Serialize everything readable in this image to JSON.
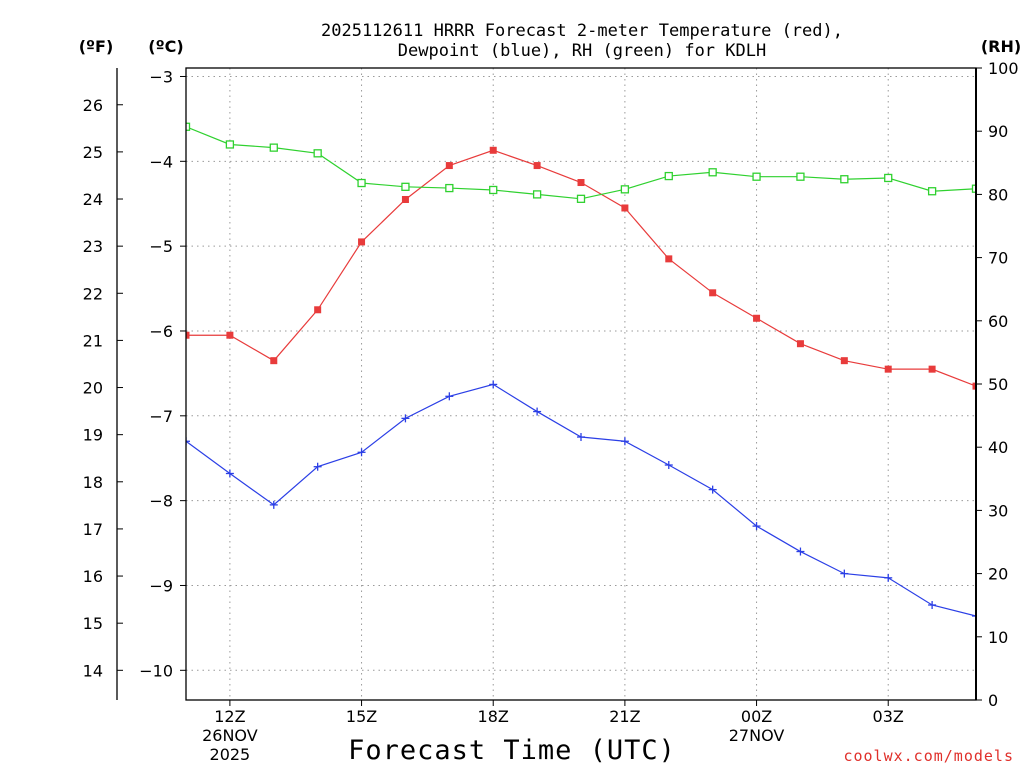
{
  "title_line1": "2025112611 HRRR Forecast 2-meter Temperature (red),",
  "title_line2": "Dewpoint (blue), RH (green) for KDLH",
  "units": {
    "fahrenheit": "(ºF)",
    "celsius": "(ºC)",
    "rh": "(RH)"
  },
  "xlabel": "Forecast Time (UTC)",
  "credit": "coolwx.com/models",
  "colors": {
    "temperature": "#e83b3b",
    "dewpoint": "#2b3fe6",
    "rh": "#2fd12f",
    "grid": "#9a9a9a"
  },
  "chart_data": {
    "type": "line",
    "x": [
      11,
      12,
      13,
      14,
      15,
      16,
      17,
      18,
      19,
      20,
      21,
      22,
      23,
      24,
      25,
      26,
      27,
      28,
      29
    ],
    "xlim": [
      11,
      29
    ],
    "x_ticks": [
      {
        "x": 12,
        "label": "12Z",
        "date": [
          "26NOV",
          "2025"
        ]
      },
      {
        "x": 15,
        "label": "15Z",
        "date": []
      },
      {
        "x": 18,
        "label": "18Z",
        "date": []
      },
      {
        "x": 21,
        "label": "21Z",
        "date": []
      },
      {
        "x": 24,
        "label": "00Z",
        "date": [
          "27NOV"
        ]
      },
      {
        "x": 27,
        "label": "03Z",
        "date": []
      }
    ],
    "celsius_axis": {
      "range": [
        -10.35,
        -2.9
      ],
      "ticks": [
        -3,
        -4,
        -5,
        -6,
        -7,
        -8,
        -9,
        -10
      ],
      "labels": [
        "−3",
        "−4",
        "−5",
        "−6",
        "−7",
        "−8",
        "−9",
        "−10"
      ]
    },
    "fahrenheit_axis": {
      "range": [
        13.37,
        26.78
      ],
      "ticks": [
        14,
        15,
        16,
        17,
        18,
        19,
        20,
        21,
        22,
        23,
        24,
        25,
        26
      ]
    },
    "rh_axis": {
      "range": [
        0,
        100
      ],
      "ticks": [
        0,
        10,
        20,
        30,
        40,
        50,
        60,
        70,
        80,
        90,
        100
      ]
    },
    "series": [
      {
        "name": "Temperature",
        "axis": "celsius",
        "marker": "filled-square",
        "values": [
          -6.05,
          -6.05,
          -6.35,
          -5.75,
          -4.95,
          -4.45,
          -4.05,
          -3.87,
          -4.05,
          -4.25,
          -4.55,
          -5.15,
          -5.55,
          -5.85,
          -6.15,
          -6.35,
          -6.45,
          -6.45,
          -6.65
        ]
      },
      {
        "name": "Dewpoint",
        "axis": "celsius",
        "marker": "plus",
        "values": [
          -7.3,
          -7.68,
          -8.05,
          -7.6,
          -7.43,
          -7.03,
          -6.77,
          -6.63,
          -6.95,
          -7.25,
          -7.3,
          -7.58,
          -7.87,
          -8.3,
          -8.6,
          -8.86,
          -8.91,
          -9.23,
          -9.36
        ]
      },
      {
        "name": "RH",
        "axis": "rh",
        "marker": "open-square",
        "values": [
          90.7,
          87.9,
          87.4,
          86.5,
          81.8,
          81.2,
          81.0,
          80.7,
          80.0,
          79.3,
          80.8,
          82.9,
          83.5,
          82.8,
          82.8,
          82.4,
          82.6,
          80.5,
          80.9
        ]
      }
    ]
  }
}
